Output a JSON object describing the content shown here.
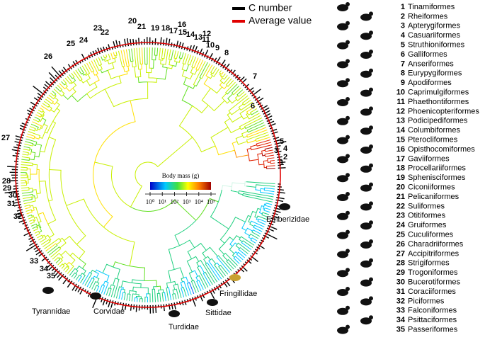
{
  "legend": {
    "items": [
      "C number",
      "Average value"
    ]
  },
  "colorbar": {
    "title": "Body mass (g)",
    "lim": [
      1,
      100000
    ],
    "ticks": [
      {
        "value": 1,
        "label": "10⁰"
      },
      {
        "value": 10,
        "label": "10¹"
      },
      {
        "value": 100,
        "label": "10²"
      },
      {
        "value": 1000,
        "label": "10³"
      },
      {
        "value": 10000,
        "label": "10⁴"
      },
      {
        "value": 100000,
        "label": "10⁵"
      }
    ]
  },
  "orders": [
    {
      "number": 1,
      "name": "Tinamiformes"
    },
    {
      "number": 2,
      "name": "Rheiformes"
    },
    {
      "number": 3,
      "name": "Apterygiformes"
    },
    {
      "number": 4,
      "name": "Casuariiformes"
    },
    {
      "number": 5,
      "name": "Struthioniformes"
    },
    {
      "number": 6,
      "name": "Galliformes"
    },
    {
      "number": 7,
      "name": "Anseriformes"
    },
    {
      "number": 8,
      "name": "Eurypygiformes"
    },
    {
      "number": 9,
      "name": "Apodiformes"
    },
    {
      "number": 10,
      "name": "Caprimulgiformes"
    },
    {
      "number": 11,
      "name": "Phaethontiformes"
    },
    {
      "number": 12,
      "name": "Phoenicopteriformes"
    },
    {
      "number": 13,
      "name": "Podicipediformes"
    },
    {
      "number": 14,
      "name": "Columbiformes"
    },
    {
      "number": 15,
      "name": "Pterocliformes"
    },
    {
      "number": 16,
      "name": "Opisthocomiformes"
    },
    {
      "number": 17,
      "name": "Gaviiformes"
    },
    {
      "number": 18,
      "name": "Procellariiformes"
    },
    {
      "number": 19,
      "name": "Sphenisciformes"
    },
    {
      "number": 20,
      "name": "Ciconiiformes"
    },
    {
      "number": 21,
      "name": "Pelicaniformes"
    },
    {
      "number": 22,
      "name": "Suliformes"
    },
    {
      "number": 23,
      "name": "Otitiformes"
    },
    {
      "number": 24,
      "name": "Gruiformes"
    },
    {
      "number": 25,
      "name": "Cuculiformes"
    },
    {
      "number": 26,
      "name": "Charadriiformes"
    },
    {
      "number": 27,
      "name": "Accipitriformes"
    },
    {
      "number": 28,
      "name": "Strigiformes"
    },
    {
      "number": 29,
      "name": "Trogoniformes"
    },
    {
      "number": 30,
      "name": "Bucerotiformes"
    },
    {
      "number": 31,
      "name": "Coraciiformes"
    },
    {
      "number": 32,
      "name": "Piciformes"
    },
    {
      "number": 33,
      "name": "Falconiformes"
    },
    {
      "number": 34,
      "name": "Psittaciformes"
    },
    {
      "number": 35,
      "name": "Passeriformes"
    }
  ],
  "clades": [
    "Emberizidae",
    "Fringillidae",
    "Sittidae",
    "Turdidae",
    "Corvidae",
    "Tyrannidae"
  ]
}
